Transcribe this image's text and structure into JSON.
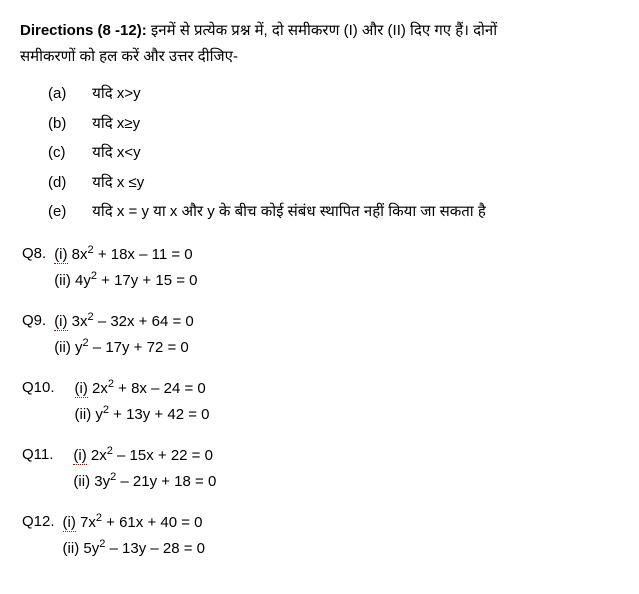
{
  "directions": {
    "label": "Directions (8 -12): ",
    "text_line1": "इनमें से प्रत्येक प्रश्न में, दो समीकरण (I) और (II) दिए गए हैं। दोनों",
    "text_line2": "समीकरणों को हल करें और उत्तर दीजिए-"
  },
  "options": [
    {
      "label": "(a)",
      "text": "यदि x>y"
    },
    {
      "label": "(b)",
      "text": "यदि x≥y"
    },
    {
      "label": "(c)",
      "text": "यदि x<y"
    },
    {
      "label": "(d)",
      "text": "यदि x ≤y"
    },
    {
      "label": "(e)",
      "text": "यदि x = y या  x और  y के बीच कोई संबंध स्थापित नहीं किया जा सकता है"
    }
  ],
  "questions": [
    {
      "num": "Q8.",
      "eq1_prefix": "(i)",
      "eq1_a": "8x",
      "eq1_b": "+ 18x – 11 = 0",
      "eq2_prefix": "(ii)",
      "eq2_a": "4y",
      "eq2_b": "+ 17y + 15 = 0",
      "indent": "narrow"
    },
    {
      "num": "Q9.",
      "eq1_prefix": "(i)",
      "eq1_a": "3x",
      "eq1_b": "– 32x + 64 = 0",
      "eq2_prefix": "(ii)",
      "eq2_a": "y",
      "eq2_b": "– 17y + 72 = 0",
      "indent": "narrow"
    },
    {
      "num": "Q10.",
      "eq1_prefix": "(i)",
      "eq1_a": "2x",
      "eq1_b": "+ 8x – 24 = 0",
      "eq2_prefix": "(ii)",
      "eq2_a": "y",
      "eq2_b": "+ 13y + 42 = 0",
      "indent": "wide"
    },
    {
      "num": "Q11.",
      "eq1_prefix": "(i)",
      "eq1_a": "2x",
      "eq1_b": "– 15x + 22 = 0",
      "eq2_prefix": "(ii)",
      "eq2_a": "3y",
      "eq2_b": "– 21y + 18 = 0",
      "indent": "wide"
    },
    {
      "num": "Q12.",
      "eq1_prefix": "(i)",
      "eq1_a": "7x",
      "eq1_b": "+ 61x + 40 = 0",
      "eq2_prefix": "(ii)",
      "eq2_a": "5y",
      "eq2_b": "– 13y – 28 = 0",
      "indent": "narrow"
    }
  ]
}
